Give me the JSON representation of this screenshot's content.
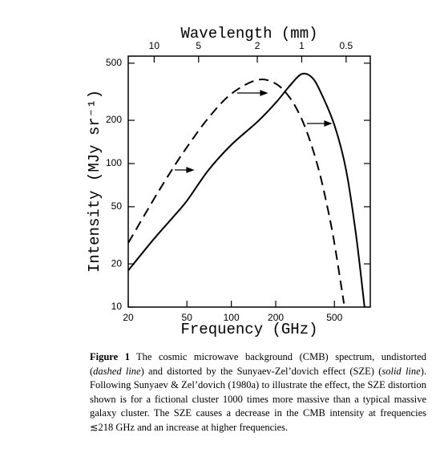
{
  "chart_data": {
    "type": "line",
    "x_label": "Frequency (GHz)",
    "y_label": "Intensity (MJy sr⁻¹)",
    "x2_label": "Wavelength (mm)",
    "xscale": "log",
    "yscale": "log",
    "xlim": [
      20,
      875
    ],
    "ylim": [
      10,
      560
    ],
    "xticks": [
      20,
      50,
      100,
      200,
      500
    ],
    "yticks": [
      10,
      20,
      50,
      100,
      200,
      500
    ],
    "x2lim": [
      14.99,
      0.343
    ],
    "x2ticks": [
      10,
      5,
      2,
      1,
      0.5
    ],
    "series": [
      {
        "style": "dashed",
        "color": "#000000",
        "x": [
          20,
          30,
          40,
          50,
          70,
          100,
          150,
          200,
          250,
          300,
          350,
          400,
          450,
          500,
          580
        ],
        "values": [
          28,
          57,
          92,
          130,
          208,
          306,
          382,
          360,
          286,
          204,
          133.5,
          83,
          48.7,
          27.8,
          10.6
        ]
      },
      {
        "style": "solid",
        "color": "#000000",
        "x": [
          20,
          30,
          40,
          50,
          70,
          100,
          150,
          200,
          250,
          300,
          350,
          400,
          500,
          600,
          700,
          800
        ],
        "values": [
          18,
          30,
          42,
          55,
          90,
          135,
          195,
          265,
          350,
          420,
          400,
          320,
          185,
          90,
          32,
          10
        ]
      }
    ]
  },
  "caption": {
    "label": "Figure 1",
    "parts": [
      {
        "text": "The cosmic microwave background (CMB) spectrum, undistorted (",
        "italic": false
      },
      {
        "text": "dashed line",
        "italic": true
      },
      {
        "text": ") and distorted by the Sunyaev-Zel’dovich effect (SZE) (",
        "italic": false
      },
      {
        "text": "solid line",
        "italic": true
      },
      {
        "text": "). Following Sunyaev & Zel’dovich (1980a) to illustrate the effect, the SZE distortion shown is for a fictional cluster 1000 times more massive than a typical massive galaxy cluster. The SZE causes a decrease in the CMB intensity at frequencies ≲218 GHz and an increase at higher frequencies.",
        "italic": false
      }
    ]
  }
}
